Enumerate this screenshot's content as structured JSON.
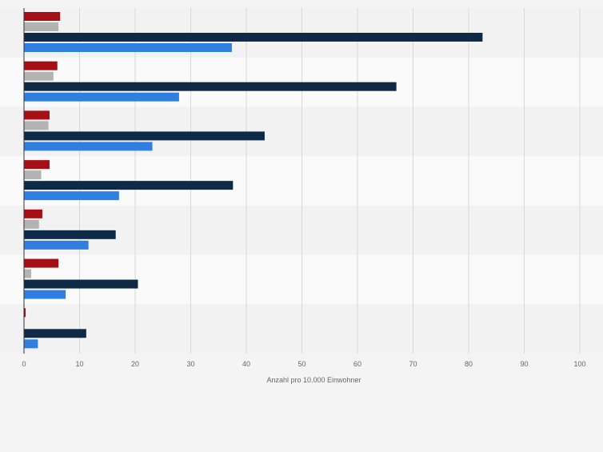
{
  "chart_data": {
    "type": "bar",
    "orientation": "horizontal",
    "categories": [
      "",
      "",
      "",
      "",
      "",
      "",
      ""
    ],
    "series": [
      {
        "color": "#a50f15",
        "values": [
          6.5,
          6.0,
          4.6,
          4.6,
          3.3,
          6.2,
          0.3
        ]
      },
      {
        "color": "#b3b3b3",
        "values": [
          6.2,
          5.3,
          4.4,
          3.1,
          2.7,
          1.3,
          0
        ]
      },
      {
        "color": "#0e2a47",
        "values": [
          82.5,
          67.0,
          43.3,
          37.6,
          16.5,
          20.5,
          11.2
        ]
      },
      {
        "color": "#2f7fe0",
        "values": [
          37.4,
          27.9,
          23.1,
          17.1,
          11.6,
          7.5,
          2.5
        ]
      }
    ],
    "xlabel": "Anzahl pro 10.000 Einwohner",
    "xlim": [
      0,
      100
    ],
    "xticks": [
      "0",
      "10",
      "20",
      "30",
      "40",
      "50",
      "60",
      "70",
      "80",
      "90",
      "100"
    ],
    "grid": "vertical",
    "legend": "none",
    "colors": {
      "band_even": "#f2f2f3",
      "band_odd": "#fafafa",
      "grid": "#d8d8d8",
      "axis": "#333333",
      "tick_label": "#666666",
      "page_background": "#f4f4f5"
    }
  }
}
